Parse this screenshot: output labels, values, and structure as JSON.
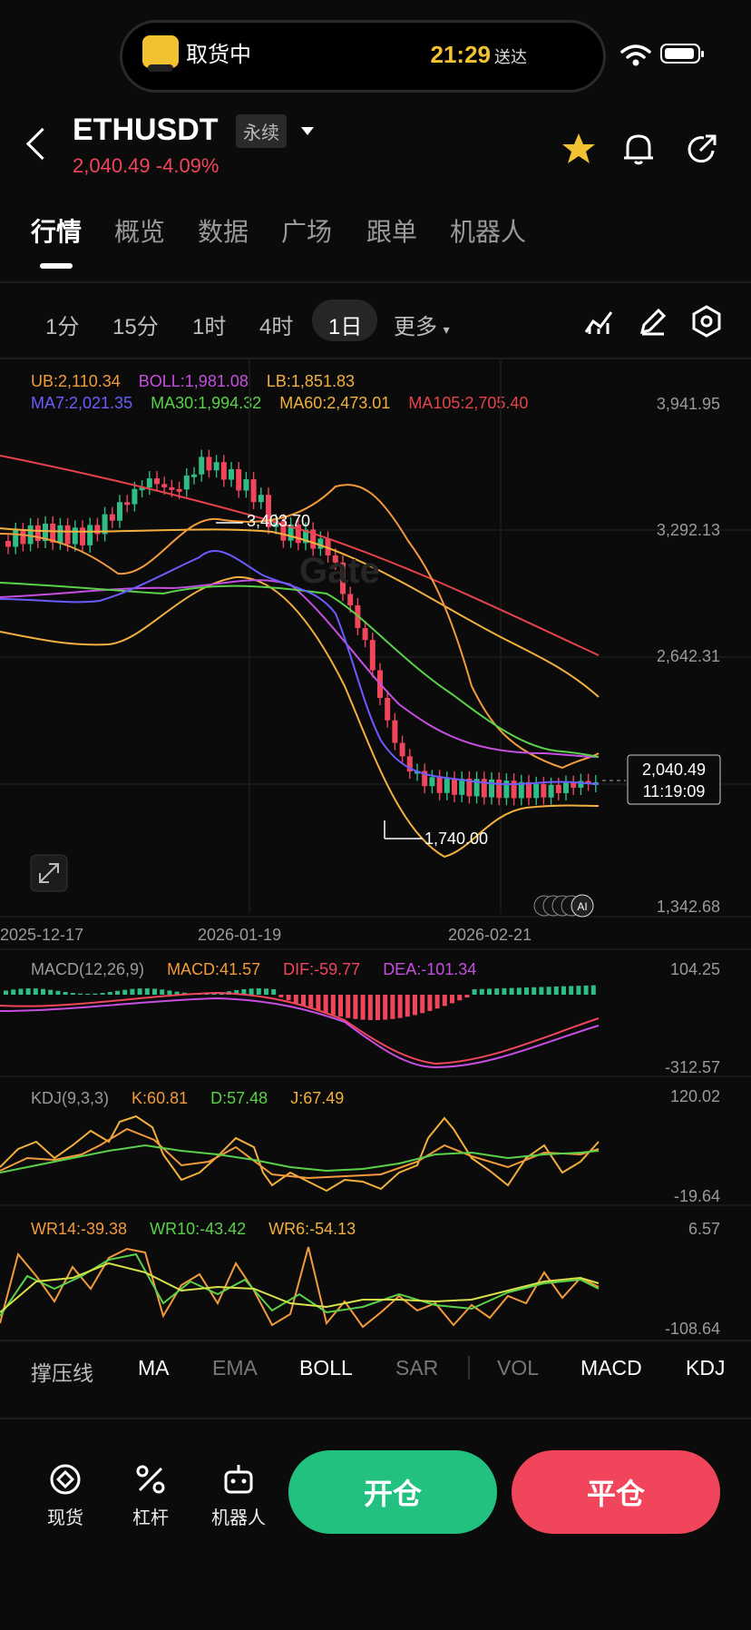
{
  "status_bar": {
    "activity": "取货中",
    "time": "21:29",
    "time_suffix": "送达"
  },
  "header": {
    "symbol": "ETHUSDT",
    "contract_type": "永续",
    "last_price": "2,040.49",
    "change_pct": "-4.09%"
  },
  "tabs": [
    "行情",
    "概览",
    "数据",
    "广场",
    "跟单",
    "机器人"
  ],
  "active_tab": "行情",
  "intervals": [
    "1分",
    "15分",
    "1时",
    "4时",
    "1日",
    "更多"
  ],
  "active_interval": "1日",
  "legend": {
    "ub": "UB:2,110.34",
    "boll": "BOLL:1,981.08",
    "lb": "LB:1,851.83",
    "ma7": "MA7:2,021.35",
    "ma30": "MA30:1,994.32",
    "ma60": "MA60:2,473.01",
    "ma105": "MA105:2,705.40"
  },
  "price_axis": [
    "3,941.95",
    "3,292.13",
    "2,642.31",
    "1,342.68"
  ],
  "date_axis": [
    "2025-12-17",
    "2026-01-19",
    "2026-02-21"
  ],
  "annotations": {
    "high": "3,403.70",
    "low": "1,740.00",
    "current_price": "2,040.49",
    "countdown": "11:19:09"
  },
  "macd": {
    "title": "MACD(12,26,9)",
    "macd": "MACD:41.57",
    "dif": "DIF:-59.77",
    "dea": "DEA:-101.34",
    "axis_max": "104.25",
    "axis_min": "-312.57"
  },
  "kdj": {
    "title": "KDJ(9,3,3)",
    "k": "K:60.81",
    "d": "D:57.48",
    "j": "J:67.49",
    "axis_max": "120.02",
    "axis_min": "-19.64"
  },
  "wr": {
    "wr14": "WR14:-39.38",
    "wr10": "WR10:-43.42",
    "wr6": "WR6:-54.13",
    "axis_max": "6.57",
    "axis_min": "-108.64"
  },
  "indicator_tabs": [
    "撑压线",
    "MA",
    "EMA",
    "BOLL",
    "SAR",
    "VOL",
    "MACD",
    "KDJ"
  ],
  "dock": {
    "spot": "现货",
    "leverage": "杠杆",
    "bot": "机器人",
    "open": "开仓",
    "close": "平仓"
  },
  "colors": {
    "up": "#2ebd85",
    "down": "#f0455a",
    "accent": "#f2c230",
    "ub": "#f29a3c",
    "boll": "#c44fe0",
    "ma7": "#6a5cff",
    "ma30": "#5ad14a",
    "ma60": "#f2b03c",
    "ma105": "#e5434a"
  },
  "chart_data": {
    "type": "candlestick",
    "title": "",
    "x": [
      "2025-12-17",
      "2026-01-19",
      "2026-02-21"
    ],
    "ylim": [
      1342.68,
      3941.95
    ],
    "marked_high": 3403.7,
    "marked_low": 1740.0,
    "last_close": 2040.49,
    "series": [
      {
        "name": "UB",
        "last": 2110.34
      },
      {
        "name": "BOLL",
        "last": 1981.08
      },
      {
        "name": "LB",
        "last": 1851.83
      },
      {
        "name": "MA7",
        "last": 2021.35
      },
      {
        "name": "MA30",
        "last": 1994.32
      },
      {
        "name": "MA60",
        "last": 2473.01
      },
      {
        "name": "MA105",
        "last": 2705.4
      }
    ]
  }
}
